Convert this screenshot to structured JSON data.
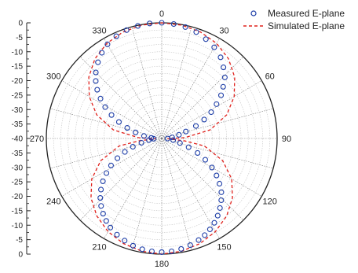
{
  "chart_data": {
    "type": "scatter",
    "subtype": "polar",
    "title": "",
    "radial_axis": {
      "ticks": [
        "0",
        "-5",
        "-10",
        "-15",
        "-20",
        "-25",
        "-30",
        "-35",
        "-40",
        "-35",
        "-30",
        "-25",
        "-20",
        "-15",
        "-10",
        "-5",
        "0"
      ],
      "range": [
        -40,
        0
      ],
      "grid": true
    },
    "angular_axis": {
      "ticks": [
        "0",
        "30",
        "60",
        "90",
        "120",
        "150",
        "180",
        "210",
        "240",
        "270",
        "300",
        "330"
      ],
      "unit": "deg",
      "direction": "clockwise",
      "zero_at": "top",
      "grid": true
    },
    "legend_position": "top-right",
    "series": [
      {
        "name": "Measured E-plane",
        "style": "open-circle",
        "color": "#1f3fa8",
        "points": [
          [
            0,
            0
          ],
          [
            6,
            -0.2
          ],
          [
            12,
            -0.6
          ],
          [
            18,
            -1.3
          ],
          [
            24,
            -2.4
          ],
          [
            30,
            -3.6
          ],
          [
            36,
            -5.3
          ],
          [
            41,
            -7.4
          ],
          [
            46,
            -9.6
          ],
          [
            50,
            -12.2
          ],
          [
            54,
            -14.6
          ],
          [
            58,
            -17.6
          ],
          [
            62,
            -20.6
          ],
          [
            66,
            -23.9
          ],
          [
            70,
            -27.4
          ],
          [
            74,
            -31.3
          ],
          [
            78,
            -33.9
          ],
          [
            84,
            -36.4
          ],
          [
            91,
            -38.0
          ],
          [
            98,
            -36.0
          ],
          [
            104,
            -33.5
          ],
          [
            108,
            -30.2
          ],
          [
            112,
            -26.6
          ],
          [
            116,
            -23.2
          ],
          [
            120,
            -19.9
          ],
          [
            124,
            -17.1
          ],
          [
            128,
            -14.6
          ],
          [
            132,
            -12.2
          ],
          [
            136,
            -10.3
          ],
          [
            140,
            -8.6
          ],
          [
            144,
            -7.0
          ],
          [
            148,
            -5.6
          ],
          [
            152,
            -4.4
          ],
          [
            156,
            -3.4
          ],
          [
            160,
            -2.6
          ],
          [
            165,
            -1.8
          ],
          [
            170,
            -1.2
          ],
          [
            175,
            -0.8
          ],
          [
            180,
            -0.7
          ],
          [
            185,
            -0.8
          ],
          [
            190,
            -1.1
          ],
          [
            195,
            -1.6
          ],
          [
            200,
            -2.4
          ],
          [
            205,
            -3.3
          ],
          [
            210,
            -4.4
          ],
          [
            214,
            -5.6
          ],
          [
            218,
            -7.0
          ],
          [
            222,
            -8.6
          ],
          [
            226,
            -10.4
          ],
          [
            230,
            -12.5
          ],
          [
            234,
            -14.8
          ],
          [
            238,
            -17.4
          ],
          [
            242,
            -20.1
          ],
          [
            246,
            -23.2
          ],
          [
            250,
            -26.4
          ],
          [
            254,
            -29.6
          ],
          [
            258,
            -32.8
          ],
          [
            263,
            -35.5
          ],
          [
            268,
            -37.2
          ],
          [
            273,
            -36.4
          ],
          [
            278,
            -33.8
          ],
          [
            283,
            -30.7
          ],
          [
            287,
            -27.5
          ],
          [
            291,
            -24.1
          ],
          [
            295,
            -20.8
          ],
          [
            299,
            -17.6
          ],
          [
            303,
            -14.7
          ],
          [
            307,
            -12.0
          ],
          [
            311,
            -9.7
          ],
          [
            315,
            -7.7
          ],
          [
            320,
            -5.6
          ],
          [
            325,
            -3.8
          ],
          [
            330,
            -2.4
          ],
          [
            336,
            -1.3
          ],
          [
            342,
            -0.6
          ],
          [
            348,
            -0.2
          ],
          [
            354,
            0
          ]
        ]
      },
      {
        "name": "Simulated E-plane",
        "style": "dashed-line",
        "color": "#e0201b",
        "points": [
          [
            0,
            0
          ],
          [
            10,
            -0.2
          ],
          [
            20,
            -0.8
          ],
          [
            30,
            -2.0
          ],
          [
            40,
            -4.0
          ],
          [
            50,
            -7.0
          ],
          [
            60,
            -11.0
          ],
          [
            70,
            -16.0
          ],
          [
            80,
            -23.0
          ],
          [
            88,
            -32.0
          ],
          [
            92,
            -38.0
          ],
          [
            96,
            -32.0
          ],
          [
            100,
            -25.0
          ],
          [
            110,
            -17.5
          ],
          [
            120,
            -12.0
          ],
          [
            130,
            -8.0
          ],
          [
            140,
            -5.0
          ],
          [
            150,
            -2.8
          ],
          [
            160,
            -1.3
          ],
          [
            170,
            -0.4
          ],
          [
            180,
            0
          ],
          [
            190,
            -0.4
          ],
          [
            200,
            -1.3
          ],
          [
            210,
            -2.8
          ],
          [
            220,
            -5.0
          ],
          [
            230,
            -8.0
          ],
          [
            240,
            -12.0
          ],
          [
            250,
            -17.5
          ],
          [
            260,
            -25.0
          ],
          [
            264,
            -32.0
          ],
          [
            268,
            -38.0
          ],
          [
            272,
            -32.0
          ],
          [
            280,
            -23.0
          ],
          [
            290,
            -16.0
          ],
          [
            300,
            -11.0
          ],
          [
            310,
            -7.0
          ],
          [
            320,
            -4.0
          ],
          [
            330,
            -2.0
          ],
          [
            340,
            -0.8
          ],
          [
            350,
            -0.2
          ],
          [
            360,
            0
          ]
        ]
      }
    ]
  }
}
